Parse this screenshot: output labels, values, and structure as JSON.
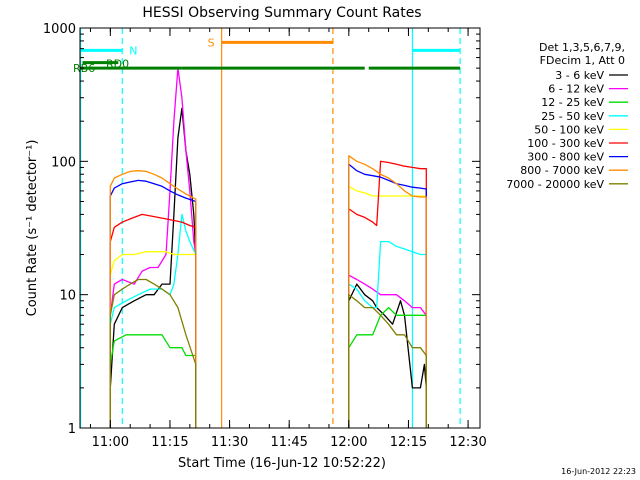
{
  "chart_data": {
    "type": "line",
    "title": "HESSI Observing Summary Count Rates",
    "xlabel": "Start Time (16-Jun-12 10:52:22)",
    "ylabel": "Count Rate (s⁻¹ detector⁻¹)",
    "ylog": true,
    "ylim": [
      1,
      1000
    ],
    "xlim": [
      "10:52:22",
      "12:33:00"
    ],
    "x_ticks": [
      "11:00",
      "11:15",
      "11:30",
      "11:45",
      "12:00",
      "12:15",
      "12:30"
    ],
    "y_ticks": [
      "1",
      "10",
      "100",
      "1000"
    ],
    "legend_position": "right",
    "legend_header": [
      "Det 1,3,5,6,7,9,",
      "FDecim 1, Att 0"
    ],
    "footer_date": "16-Jun-2012 22:23",
    "series": [
      {
        "name": "3 - 6 keV",
        "color": "#000000",
        "x": [
          "11:00",
          "11:01",
          "11:03",
          "11:06",
          "11:09",
          "11:11",
          "11:13",
          "11:15",
          "11:16",
          "11:17",
          "11:18",
          "11:19",
          "11:20",
          "11:21",
          "11:21:30",
          "12:00",
          "12:02",
          "12:04",
          "12:06",
          "12:07",
          "12:09",
          "12:11",
          "12:13",
          "12:14",
          "12:16",
          "12:18",
          "12:19",
          "12:19:30"
        ],
        "y": [
          2,
          6,
          8,
          9,
          10,
          10,
          12,
          12,
          40,
          150,
          250,
          120,
          80,
          40,
          20,
          9,
          12,
          10,
          9,
          8,
          7,
          6,
          9,
          7,
          2,
          2,
          3,
          2
        ]
      },
      {
        "name": "6 - 12 keV",
        "color": "#ff00ff",
        "x": [
          "11:00",
          "11:01",
          "11:03",
          "11:06",
          "11:08",
          "11:10",
          "11:12",
          "11:14",
          "11:15",
          "11:16",
          "11:17",
          "11:18",
          "11:19",
          "11:20",
          "11:21",
          "11:21:30",
          "12:00",
          "12:02",
          "12:04",
          "12:06",
          "12:08",
          "12:10",
          "12:12",
          "12:14",
          "12:16",
          "12:18",
          "12:19:30"
        ],
        "y": [
          7,
          12,
          13,
          12,
          15,
          16,
          16,
          20,
          60,
          200,
          500,
          300,
          120,
          60,
          25,
          20,
          14,
          13,
          12,
          11,
          10,
          10,
          10,
          9,
          8,
          8,
          7
        ]
      },
      {
        "name": "12 - 25 keV",
        "color": "#00dd00",
        "x": [
          "11:00",
          "11:01",
          "11:04",
          "11:07",
          "11:10",
          "11:13",
          "11:15",
          "11:16",
          "11:17",
          "11:18",
          "11:19",
          "11:20",
          "11:21:30",
          "12:00",
          "12:02",
          "12:04",
          "12:06",
          "12:08",
          "12:10",
          "12:12",
          "12:14",
          "12:16",
          "12:18",
          "12:19:30"
        ],
        "y": [
          3,
          4.5,
          5,
          5,
          5,
          5,
          4,
          4,
          4,
          4,
          3.5,
          3.5,
          3.5,
          4,
          5,
          5,
          5,
          7,
          8,
          7,
          7,
          7,
          7,
          7
        ]
      },
      {
        "name": "25 - 50 keV",
        "color": "#00ffff",
        "x": [
          "11:00",
          "11:01",
          "11:04",
          "11:07",
          "11:10",
          "11:13",
          "11:15",
          "11:16",
          "11:17",
          "11:18",
          "11:19",
          "11:20",
          "11:21:30",
          "12:00",
          "12:02",
          "12:04",
          "12:06",
          "12:07",
          "12:08",
          "12:10",
          "12:12",
          "12:14",
          "12:16",
          "12:18",
          "12:19:30"
        ],
        "y": [
          6,
          8,
          9,
          10,
          11,
          11,
          10,
          12,
          20,
          40,
          30,
          25,
          20,
          12,
          11,
          9,
          8,
          8,
          25,
          25,
          23,
          22,
          21,
          20,
          20
        ]
      },
      {
        "name": "50 - 100 keV",
        "color": "#ffff00",
        "x": [
          "11:00",
          "11:01",
          "11:03",
          "11:06",
          "11:09",
          "11:12",
          "11:14",
          "11:16",
          "11:18",
          "11:20",
          "11:21:30",
          "12:00",
          "12:02",
          "12:04",
          "12:06",
          "12:08",
          "12:10",
          "12:12",
          "12:14",
          "12:16",
          "12:18",
          "12:19:30"
        ],
        "y": [
          14,
          18,
          20,
          20,
          21,
          21,
          21,
          20,
          20,
          20,
          20,
          65,
          60,
          58,
          55,
          55,
          55,
          55,
          55,
          55,
          55,
          55
        ]
      },
      {
        "name": "100 - 300 keV",
        "color": "#ff0000",
        "x": [
          "11:00",
          "11:01",
          "11:03",
          "11:05",
          "11:08",
          "11:10",
          "11:12",
          "11:14",
          "11:16",
          "11:18",
          "11:20",
          "11:21:30",
          "12:00",
          "12:02",
          "12:04",
          "12:06",
          "12:07",
          "12:08",
          "12:10",
          "12:12",
          "12:14",
          "12:16",
          "12:18",
          "12:19:30"
        ],
        "y": [
          25,
          32,
          35,
          37,
          40,
          39,
          38,
          37,
          36,
          35,
          33,
          32,
          44,
          40,
          38,
          35,
          33,
          100,
          98,
          95,
          92,
          90,
          88,
          88
        ]
      },
      {
        "name": "300 - 800 keV",
        "color": "#0000ff",
        "x": [
          "11:00",
          "11:01",
          "11:03",
          "11:05",
          "11:07",
          "11:09",
          "11:11",
          "11:13",
          "11:15",
          "11:17",
          "11:19",
          "11:21:30",
          "12:00",
          "12:02",
          "12:04",
          "12:06",
          "12:08",
          "12:10",
          "12:12",
          "12:14",
          "12:16",
          "12:18",
          "12:19:30"
        ],
        "y": [
          55,
          63,
          68,
          70,
          72,
          71,
          68,
          65,
          60,
          56,
          53,
          50,
          95,
          85,
          80,
          78,
          76,
          72,
          68,
          66,
          64,
          63,
          62
        ]
      },
      {
        "name": "800 - 7000 keV",
        "color": "#ff8c00",
        "x": [
          "11:00",
          "11:01",
          "11:03",
          "11:05",
          "11:07",
          "11:09",
          "11:11",
          "11:13",
          "11:15",
          "11:17",
          "11:19",
          "11:21:30",
          "12:00",
          "12:02",
          "12:04",
          "12:06",
          "12:08",
          "12:10",
          "12:12",
          "12:14",
          "12:16",
          "12:18",
          "12:19:30"
        ],
        "y": [
          65,
          75,
          80,
          84,
          85,
          84,
          80,
          75,
          68,
          62,
          57,
          52,
          110,
          100,
          95,
          88,
          80,
          75,
          68,
          60,
          55,
          54,
          54
        ]
      },
      {
        "name": "7000 - 20000 keV",
        "color": "#808000",
        "x": [
          "11:00",
          "11:01",
          "11:03",
          "11:05",
          "11:07",
          "11:09",
          "11:11",
          "11:13",
          "11:15",
          "11:17",
          "11:19",
          "11:21:30",
          "12:00",
          "12:02",
          "12:04",
          "12:06",
          "12:08",
          "12:10",
          "12:12",
          "12:14",
          "12:16",
          "12:18",
          "12:19:30"
        ],
        "y": [
          7,
          10,
          11,
          12,
          13,
          13,
          12,
          11,
          10,
          8,
          5,
          3,
          10,
          9,
          8,
          8,
          7,
          6,
          5,
          5,
          4,
          4,
          3.5
        ]
      }
    ],
    "state_bars": [
      {
        "label": "N",
        "color": "#00ffff",
        "level": 680,
        "segments": [
          [
            "10:52:22",
            "11:03:00"
          ],
          [
            "12:16:00",
            "12:28:00"
          ]
        ]
      },
      {
        "label": "RD0",
        "color": "#008000",
        "level": 550,
        "segments": [
          [
            "10:53:00",
            "11:02:00"
          ]
        ]
      },
      {
        "label": "RB6",
        "color": "#008000",
        "level": 500,
        "segments": [
          [
            "10:52:22",
            "11:18:00"
          ],
          [
            "11:18:00",
            "11:56:00"
          ],
          [
            "11:56:00",
            "12:04:00"
          ],
          [
            "12:05:00",
            "12:28:00"
          ]
        ]
      },
      {
        "label": "S",
        "color": "#ff8c00",
        "level": 780,
        "segments": [
          [
            "11:28:00",
            "11:56:00"
          ]
        ]
      }
    ],
    "vertical_markers": [
      {
        "time": "10:52:30",
        "color": "#00ffff",
        "style": "solid"
      },
      {
        "time": "11:03:00",
        "color": "#00ffff",
        "style": "dashed"
      },
      {
        "time": "11:28:00",
        "color": "#ff8c00",
        "style": "solid"
      },
      {
        "time": "11:56:00",
        "color": "#ff8c00",
        "style": "dashed"
      },
      {
        "time": "12:16:00",
        "color": "#00ffff",
        "style": "solid"
      },
      {
        "time": "12:28:00",
        "color": "#00ffff",
        "style": "dashed"
      }
    ]
  }
}
